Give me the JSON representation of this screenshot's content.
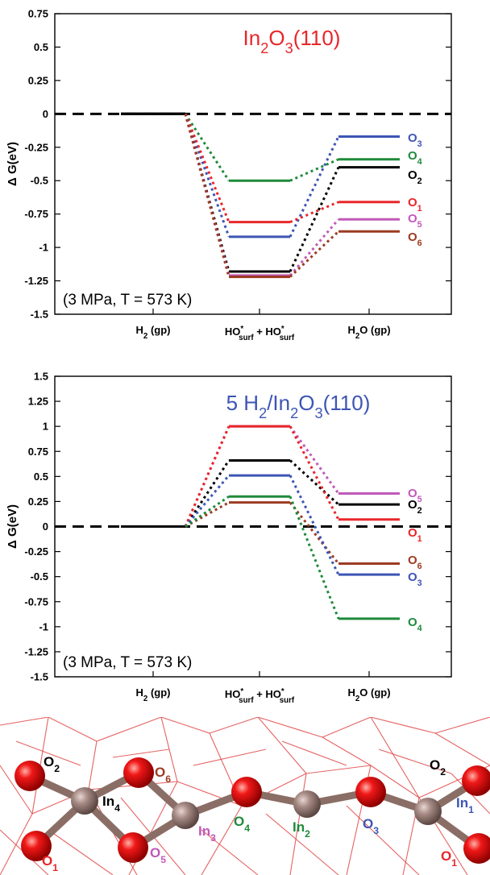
{
  "chart_data": [
    {
      "type": "line",
      "title_main": "In",
      "title_sub1": "2",
      "title_mid": "O",
      "title_sub2": "3",
      "title_tail": "(110)",
      "title_color": "#e8262a",
      "ylabel": "Δ G(eV)",
      "ylim": [
        -1.5,
        0.75
      ],
      "yticks": [
        "0.75",
        "0.5",
        "0.25",
        "0",
        "-0.25",
        "-0.5",
        "-0.75",
        "-1",
        "-1.25",
        "-1.5"
      ],
      "ytick_values": [
        0.75,
        0.5,
        0.25,
        0,
        -0.25,
        -0.5,
        -0.75,
        -1,
        -1.25,
        -1.5
      ],
      "categories": [
        "H2 (gp)",
        "HO*surf + HO*surf",
        "H2O (gp)"
      ],
      "condition": "(3 MPa, T = 573 K)",
      "reference_line": 0,
      "series": [
        {
          "name": "O3",
          "label": "O",
          "sub": "3",
          "color": "#3d55b4",
          "values": [
            0,
            -0.92,
            -0.17
          ]
        },
        {
          "name": "O4",
          "label": "O",
          "sub": "4",
          "color": "#1f8a3a",
          "values": [
            0,
            -0.5,
            -0.34
          ]
        },
        {
          "name": "O2",
          "label": "O",
          "sub": "2",
          "color": "#000000",
          "values": [
            0,
            -1.18,
            -0.4
          ]
        },
        {
          "name": "O1",
          "label": "O",
          "sub": "1",
          "color": "#e8262a",
          "values": [
            0,
            -0.81,
            -0.66
          ]
        },
        {
          "name": "O5",
          "label": "O",
          "sub": "5",
          "color": "#c159b8",
          "values": [
            0,
            -1.21,
            -0.79
          ]
        },
        {
          "name": "O6",
          "label": "O",
          "sub": "6",
          "color": "#9c3b22",
          "values": [
            0,
            -1.22,
            -0.88
          ]
        }
      ]
    },
    {
      "type": "line",
      "title_main": "5 H",
      "title_sub1": "2",
      "title_mid": "/In",
      "title_sub2": "2",
      "title_mid2": "O",
      "title_sub3": "3",
      "title_tail": "(110)",
      "title_color": "#3d55b4",
      "ylabel": "Δ G(eV)",
      "ylim": [
        -1.5,
        1.5
      ],
      "yticks": [
        "1.5",
        "1.25",
        "1",
        "0.75",
        "0.5",
        "0.25",
        "0",
        "-0.25",
        "-0.5",
        "-0.75",
        "-1",
        "-1.25",
        "-1.5"
      ],
      "ytick_values": [
        1.5,
        1.25,
        1,
        0.75,
        0.5,
        0.25,
        0,
        -0.25,
        -0.5,
        -0.75,
        -1,
        -1.25,
        -1.5
      ],
      "categories": [
        "H2 (gp)",
        "HO*surf + HO*surf",
        "H2O (gp)"
      ],
      "condition": "(3 MPa, T = 573 K)",
      "reference_line": 0,
      "series": [
        {
          "name": "O5",
          "label": "O",
          "sub": "5",
          "color": "#c159b8",
          "values": [
            0,
            1.0,
            0.33
          ]
        },
        {
          "name": "O2",
          "label": "O",
          "sub": "2",
          "color": "#000000",
          "values": [
            0,
            0.66,
            0.22
          ]
        },
        {
          "name": "O1",
          "label": "O",
          "sub": "1",
          "color": "#e8262a",
          "values": [
            0,
            1.0,
            0.07
          ]
        },
        {
          "name": "O6",
          "label": "O",
          "sub": "6",
          "color": "#9c3b22",
          "values": [
            0,
            0.24,
            -0.37
          ]
        },
        {
          "name": "O3",
          "label": "O",
          "sub": "3",
          "color": "#3d55b4",
          "values": [
            0,
            0.51,
            -0.48
          ]
        },
        {
          "name": "O4",
          "label": "O",
          "sub": "4",
          "color": "#1f8a3a",
          "values": [
            0,
            0.3,
            -0.92
          ]
        }
      ]
    }
  ],
  "structure": {
    "atom_labels": [
      {
        "name": "O2-left",
        "text": "O",
        "sub": "2",
        "color": "#000000"
      },
      {
        "name": "O6",
        "text": "O",
        "sub": "6",
        "color": "#9c3b22"
      },
      {
        "name": "In4",
        "text": "In",
        "sub": "4",
        "color": "#000000"
      },
      {
        "name": "O4",
        "text": "O",
        "sub": "4",
        "color": "#1f8a3a"
      },
      {
        "name": "O3",
        "text": "O",
        "sub": "3",
        "color": "#3d55b4"
      },
      {
        "name": "In2",
        "text": "In",
        "sub": "2",
        "color": "#1f8a3a"
      },
      {
        "name": "In3",
        "text": "In",
        "sub": "3",
        "color": "#c159b8"
      },
      {
        "name": "O5",
        "text": "O",
        "sub": "5",
        "color": "#c159b8"
      },
      {
        "name": "O1-left",
        "text": "O",
        "sub": "1",
        "color": "#e8262a"
      },
      {
        "name": "O2-right",
        "text": "O",
        "sub": "2",
        "color": "#000000"
      },
      {
        "name": "In1",
        "text": "In",
        "sub": "1",
        "color": "#3d55b4"
      },
      {
        "name": "O1-right",
        "text": "O",
        "sub": "1",
        "color": "#e8262a"
      }
    ]
  }
}
